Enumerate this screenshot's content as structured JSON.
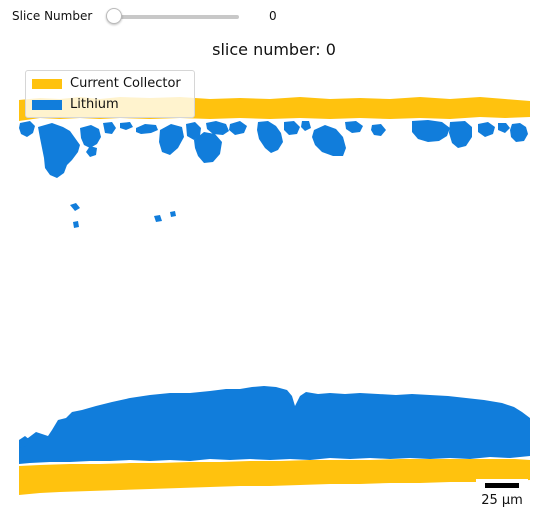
{
  "slider": {
    "label": "Slice Number",
    "value": "0",
    "level": 0
  },
  "figure": {
    "title": "slice number: 0",
    "legend": [
      {
        "label": "Current Collector",
        "color": "#FFC20E"
      },
      {
        "label": "Lithium",
        "color": "#117DDB"
      }
    ],
    "scalebar_label": "25 μm"
  }
}
